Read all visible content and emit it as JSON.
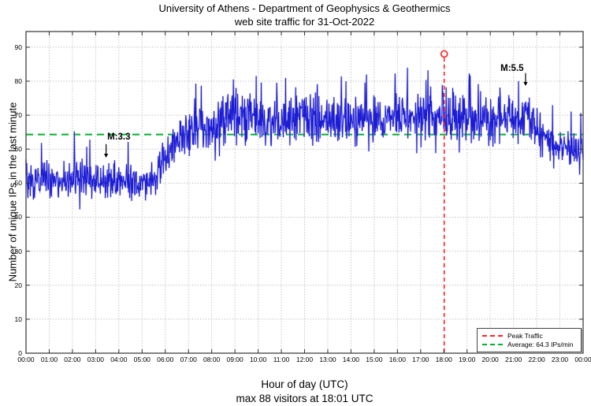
{
  "chart_data": {
    "type": "line",
    "title": "University of Athens - Department of Geophysics & Geothermics",
    "subtitle": "web site traffic for 31-Oct-2022",
    "xlabel": "Hour of day (UTC)",
    "caption": "max 88 visitors at 18:01 UTC",
    "ylabel": "Number of unique IPs in the last minute",
    "xlim_hours": [
      0,
      24
    ],
    "ylim": [
      0,
      94.6
    ],
    "yticks": [
      0,
      10,
      20,
      30,
      40,
      50,
      60,
      70,
      80,
      90
    ],
    "xticks_hours": [
      0,
      1,
      2,
      3,
      4,
      5,
      6,
      7,
      8,
      9,
      10,
      11,
      12,
      13,
      14,
      15,
      16,
      17,
      18,
      19,
      20,
      21,
      22,
      23,
      24
    ],
    "xtick_labels": [
      "00:00",
      "01:00",
      "02:00",
      "03:00",
      "04:00",
      "05:00",
      "06:00",
      "07:00",
      "08:00",
      "09:00",
      "10:00",
      "11:00",
      "12:00",
      "13:00",
      "14:00",
      "15:00",
      "16:00",
      "17:00",
      "18:00",
      "19:00",
      "20:00",
      "21:00",
      "22:00",
      "23:00",
      "00:00"
    ],
    "grid": true,
    "series": [
      {
        "name": "unique IPs per minute",
        "color": "#1c1cd2",
        "glow_color": "#9a9aef",
        "points_per_hour": 60,
        "noise_seed": 1031,
        "spike_chance": 0.035,
        "spike_max": 14,
        "profile_control_points": [
          [
            0,
            52,
            5
          ],
          [
            0.3,
            51,
            5
          ],
          [
            1,
            51,
            5
          ],
          [
            2,
            52,
            5.5
          ],
          [
            3,
            51,
            5
          ],
          [
            3.8,
            50.5,
            5
          ],
          [
            4.5,
            50,
            4.5
          ],
          [
            5.3,
            50.5,
            4.5
          ],
          [
            5.8,
            55,
            5
          ],
          [
            6.3,
            61,
            5
          ],
          [
            7,
            65,
            5.5
          ],
          [
            7.6,
            66.5,
            6
          ],
          [
            8.3,
            68,
            6.5
          ],
          [
            9,
            70,
            7
          ],
          [
            9.7,
            70,
            7
          ],
          [
            10.3,
            67.5,
            6
          ],
          [
            11,
            68,
            6
          ],
          [
            12,
            69,
            6.5
          ],
          [
            13,
            68,
            6.5
          ],
          [
            14,
            68,
            6
          ],
          [
            15,
            69,
            6
          ],
          [
            16,
            70,
            6
          ],
          [
            17,
            70,
            6
          ],
          [
            18,
            70,
            6
          ],
          [
            19,
            68.5,
            6
          ],
          [
            20,
            68,
            6
          ],
          [
            21,
            69.5,
            6
          ],
          [
            21.8,
            69,
            6
          ],
          [
            22.3,
            63,
            5
          ],
          [
            23,
            61,
            4.5
          ],
          [
            23.6,
            60,
            4.5
          ],
          [
            24,
            59,
            4
          ]
        ]
      }
    ],
    "average_line": {
      "value": 64.3,
      "label": "Average: 64.3 IPs/min",
      "color": "#00b22d",
      "style": "dashed"
    },
    "peak_line": {
      "hour": 18.0167,
      "value": 88,
      "time": "18:01",
      "label": "Peak Traffic",
      "color": "#ff2020",
      "style": "dashed",
      "marker": "open-circle"
    },
    "annotations": [
      {
        "label": "M:3.3",
        "text_hour": 4.0,
        "text_value": 65.0,
        "arrow_hour": 3.45,
        "arrow_from_value": 61.5,
        "arrow_to_value": 57.5
      },
      {
        "label": "M:5.5",
        "text_hour": 20.94,
        "text_value": 85.2,
        "arrow_hour": 21.52,
        "arrow_from_value": 82.4,
        "arrow_to_value": 78.6
      }
    ],
    "legend": {
      "position": "bottom-right",
      "items": [
        {
          "label": "Peak Traffic",
          "color": "#ff2020"
        },
        {
          "label": "Average: 64.3 IPs/min",
          "color": "#00b22d"
        }
      ]
    }
  }
}
